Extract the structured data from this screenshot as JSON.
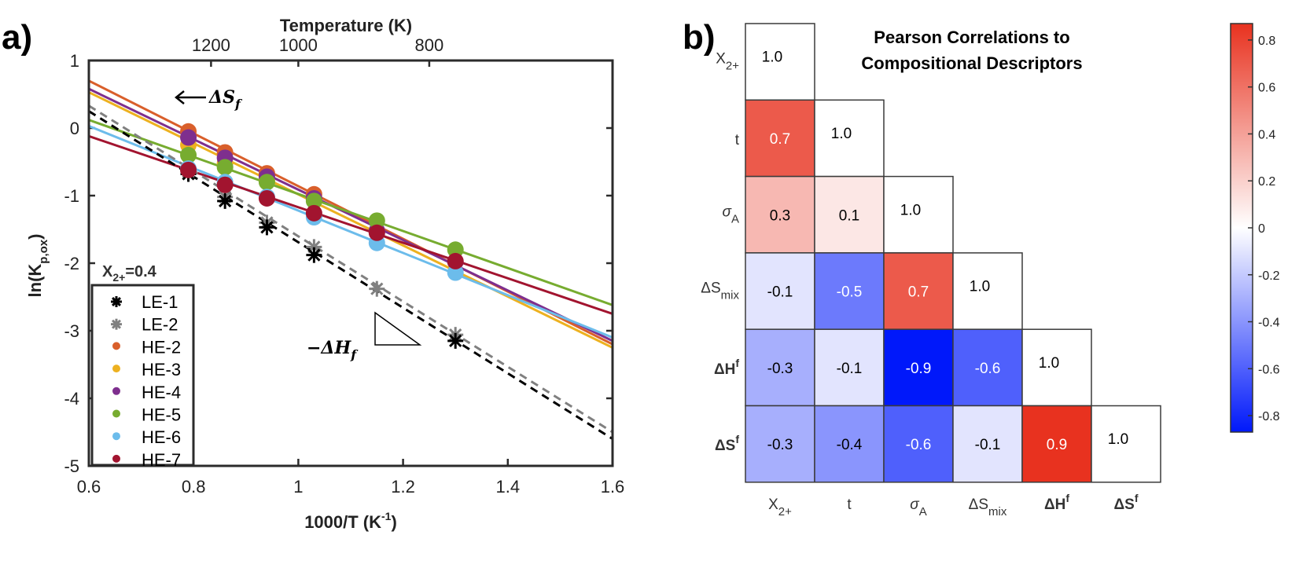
{
  "panels": {
    "a_label": "a)",
    "b_label": "b)"
  },
  "chart_data": [
    {
      "type": "line",
      "id": "arrhenius",
      "title": "",
      "xlabel": "1000/T (K",
      "xlabel_sup": "-1",
      "xlabel_end": ")",
      "ylabel": "ln(K",
      "ylabel_sub": "p,ox",
      "ylabel_end": ")",
      "top_axis_label": "Temperature (K)",
      "top_ticks": [
        {
          "label": "1200",
          "x": 0.8333
        },
        {
          "label": "1000",
          "x": 1.0
        },
        {
          "label": "800",
          "x": 1.25
        }
      ],
      "xlim": [
        0.6,
        1.6
      ],
      "ylim": [
        -5,
        1
      ],
      "xticks": [
        "0.6",
        "0.8",
        "1",
        "1.2",
        "1.4",
        "1.6"
      ],
      "xtick_values": [
        0.6,
        0.8,
        1.0,
        1.2,
        1.4,
        1.6
      ],
      "yticks": [
        "1",
        "0",
        "-1",
        "-2",
        "-3",
        "-4",
        "-5"
      ],
      "ytick_values": [
        1,
        0,
        -1,
        -2,
        -3,
        -4,
        -5
      ],
      "annotation_composition": "X",
      "annotation_composition_sub": "2+",
      "annotation_composition_value": "=0.4",
      "annotation_entropy": "ΔS",
      "annotation_entropy_sub": "f",
      "annotation_enthalpy": "−ΔH",
      "annotation_enthalpy_sub": "f",
      "legend_position": "bottom-left",
      "series": [
        {
          "name": "LE-1",
          "marker": "asterisk",
          "color": "#000000",
          "dashed": true,
          "x": [
            0.79,
            0.86,
            0.94,
            1.03,
            1.3
          ],
          "y": [
            -0.68,
            -1.08,
            -1.47,
            -1.88,
            -3.15
          ],
          "fit": {
            "x": [
              0.6,
              1.6
            ],
            "y": [
              0.25,
              -4.6
            ]
          }
        },
        {
          "name": "LE-2",
          "marker": "asterisk",
          "color": "#808080",
          "dashed": true,
          "x": [
            0.79,
            0.86,
            0.94,
            1.03,
            1.15,
            1.3
          ],
          "y": [
            -0.65,
            -1.02,
            -1.4,
            -1.76,
            -2.38,
            -3.06
          ],
          "fit": {
            "x": [
              0.6,
              1.6
            ],
            "y": [
              0.33,
              -4.5
            ]
          }
        },
        {
          "name": "HE-2",
          "marker": "circle",
          "color": "#D95F2B",
          "dashed": false,
          "x": [
            0.79,
            0.86,
            0.94,
            1.03
          ],
          "y": [
            -0.05,
            -0.36,
            -0.67,
            -0.98
          ],
          "fit": {
            "x": [
              0.6,
              1.6
            ],
            "y": [
              0.7,
              -3.2
            ]
          }
        },
        {
          "name": "HE-3",
          "marker": "circle",
          "color": "#EDB120",
          "dashed": false,
          "x": [
            0.79,
            0.86,
            0.94
          ],
          "y": [
            -0.25,
            -0.52,
            -0.78
          ],
          "fit": {
            "x": [
              0.6,
              1.6
            ],
            "y": [
              0.53,
              -3.25
            ]
          }
        },
        {
          "name": "HE-4",
          "marker": "circle",
          "color": "#7E2F8E",
          "dashed": false,
          "x": [
            0.79,
            0.86,
            0.94,
            1.03,
            1.15,
            1.3
          ],
          "y": [
            -0.14,
            -0.44,
            -0.72,
            -1.04,
            -1.52,
            -1.98
          ],
          "fit": {
            "x": [
              0.6,
              1.6
            ],
            "y": [
              0.58,
              -3.15
            ]
          }
        },
        {
          "name": "HE-5",
          "marker": "circle",
          "color": "#77AC30",
          "dashed": false,
          "x": [
            0.79,
            0.86,
            0.94,
            1.03,
            1.15,
            1.3
          ],
          "y": [
            -0.4,
            -0.58,
            -0.8,
            -1.08,
            -1.37,
            -1.8
          ],
          "fit": {
            "x": [
              0.6,
              1.6
            ],
            "y": [
              0.12,
              -2.62
            ]
          }
        },
        {
          "name": "HE-6",
          "marker": "circle",
          "color": "#6CBCEB",
          "dashed": false,
          "x": [
            0.79,
            0.86,
            0.94,
            1.03,
            1.15,
            1.3
          ],
          "y": [
            -0.6,
            -0.8,
            -1.02,
            -1.32,
            -1.7,
            -2.14
          ],
          "fit": {
            "x": [
              0.6,
              1.6
            ],
            "y": [
              0.03,
              -3.1
            ]
          }
        },
        {
          "name": "HE-7",
          "marker": "circle",
          "color": "#A2142F",
          "dashed": false,
          "x": [
            0.79,
            0.86,
            0.94,
            1.03,
            1.15,
            1.3
          ],
          "y": [
            -0.62,
            -0.84,
            -1.04,
            -1.26,
            -1.55,
            -1.97
          ],
          "fit": {
            "x": [
              0.6,
              1.6
            ],
            "y": [
              -0.12,
              -2.75
            ]
          }
        }
      ]
    },
    {
      "type": "heatmap",
      "id": "pearson",
      "title_line1": "Pearson Correlations to",
      "title_line2": "Compositional Descriptors",
      "variables": [
        {
          "main": "X",
          "sub": "2+",
          "sup": "",
          "bold": false,
          "greek": false
        },
        {
          "main": "t",
          "sub": "",
          "sup": "",
          "bold": false,
          "greek": false
        },
        {
          "main": "σ",
          "sub": "A",
          "sup": "",
          "bold": false,
          "greek": true
        },
        {
          "main": "ΔS",
          "sub": "mix",
          "sup": "",
          "bold": false,
          "greek": false
        },
        {
          "main": "ΔH",
          "sub": "",
          "sup": "f",
          "bold": true,
          "greek": false
        },
        {
          "main": "ΔS",
          "sub": "",
          "sup": "f",
          "bold": true,
          "greek": false
        }
      ],
      "matrix": [
        [
          1.0
        ],
        [
          0.7,
          1.0
        ],
        [
          0.3,
          0.1,
          1.0
        ],
        [
          -0.1,
          -0.5,
          0.7,
          1.0
        ],
        [
          -0.3,
          -0.1,
          -0.9,
          -0.6,
          1.0
        ],
        [
          -0.3,
          -0.4,
          -0.6,
          -0.1,
          0.9,
          1.0
        ]
      ],
      "matrix_labels": [
        [
          "1.0"
        ],
        [
          "0.7",
          "1.0"
        ],
        [
          "0.3",
          "0.1",
          "1.0"
        ],
        [
          "-0.1",
          "-0.5",
          "0.7",
          "1.0"
        ],
        [
          "-0.3",
          "-0.1",
          "-0.9",
          "-0.6",
          "1.0"
        ],
        [
          "-0.3",
          "-0.4",
          "-0.6",
          "-0.1",
          "0.9",
          "1.0"
        ]
      ],
      "colorbar": {
        "range": [
          -0.87,
          0.87
        ],
        "ticks": [
          "0.8",
          "0.6",
          "0.4",
          "0.2",
          "0",
          "-0.2",
          "-0.4",
          "-0.6",
          "-0.8"
        ],
        "tick_values": [
          0.8,
          0.6,
          0.4,
          0.2,
          0,
          -0.2,
          -0.4,
          -0.6,
          -0.8
        ],
        "color_high": "#E8321F",
        "color_mid": "#FFFFFF",
        "color_low": "#0018FA"
      }
    }
  ]
}
